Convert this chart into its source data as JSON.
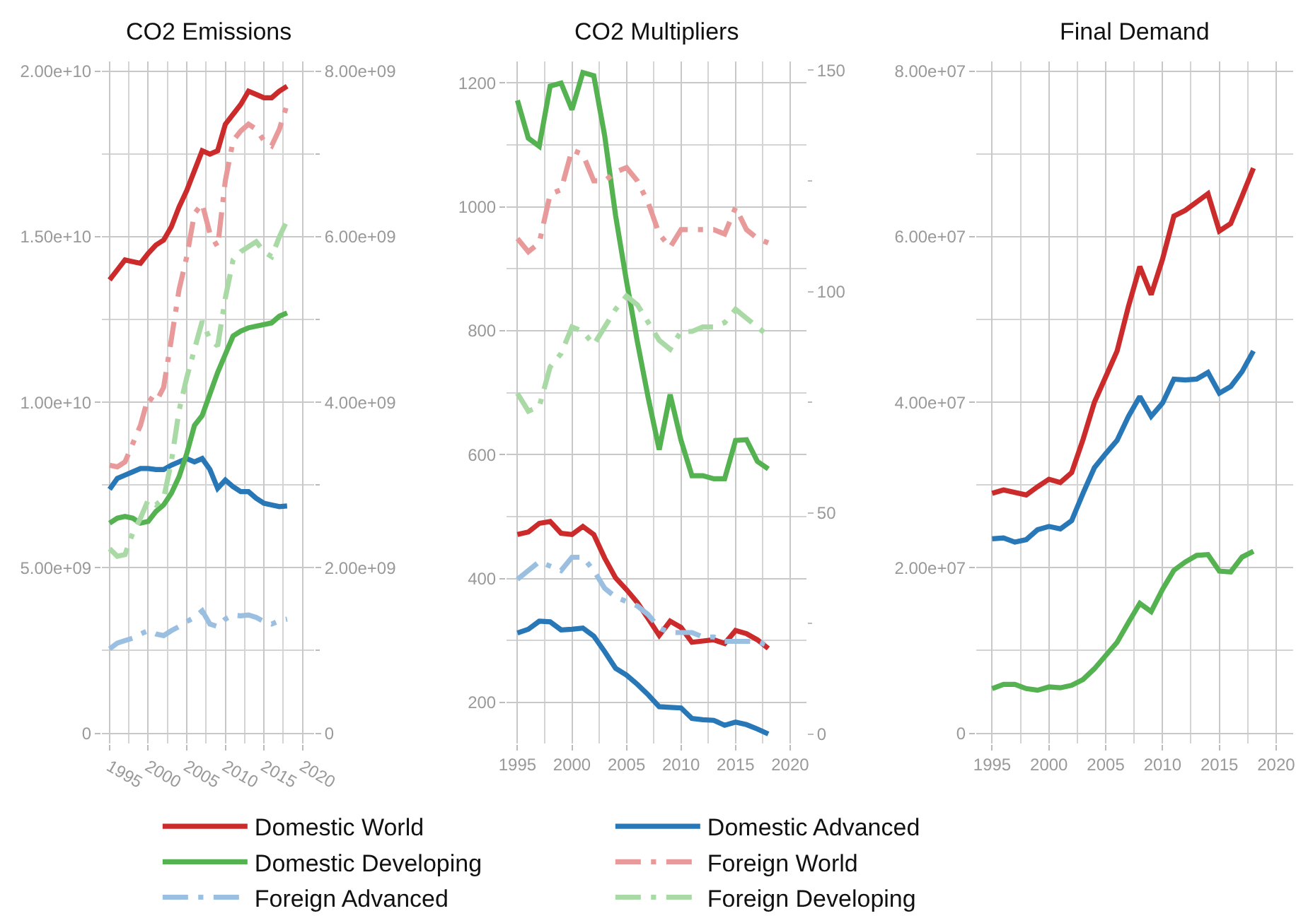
{
  "chart_data": [
    {
      "type": "line",
      "title": "CO2 Emissions",
      "x": [
        1995,
        1996,
        1997,
        1998,
        1999,
        2000,
        2001,
        2002,
        2003,
        2004,
        2005,
        2006,
        2007,
        2008,
        2009,
        2010,
        2011,
        2012,
        2013,
        2014,
        2015,
        2016,
        2017,
        2018
      ],
      "xlim": [
        1994,
        2021.5
      ],
      "xticks": [
        1995,
        2000,
        2005,
        2010,
        2015,
        2020
      ],
      "ylim": [
        -300000000.0,
        20300000000.0
      ],
      "yticks": [
        0,
        {
          "value": 5000000000.0,
          "label": "5.00e+09"
        },
        {
          "value": 10000000000.0,
          "label": "1.00e+10"
        },
        {
          "value": 15000000000.0,
          "label": "1.50e+10"
        },
        {
          "value": 20000000000.0,
          "label": "2.00e+10"
        }
      ],
      "y2lim": [
        -120000000.0,
        8120000000.0
      ],
      "y2ticks": [
        0,
        {
          "value": 2000000000.0,
          "label": "2.00e+09"
        },
        {
          "value": 4000000000.0,
          "label": "4.00e+09"
        },
        {
          "value": 6000000000.0,
          "label": "6.00e+09"
        },
        {
          "value": 8000000000.0,
          "label": "8.00e+09"
        }
      ],
      "grid": true,
      "legend": "bottom",
      "marker": "none",
      "series": [
        {
          "name": "Domestic World",
          "color": "#cc2b2b",
          "line_style": "solid",
          "values": [
            13700000000.0,
            14000000000.0,
            14300000000.0,
            14250000000.0,
            14200000000.0,
            14500000000.0,
            14750000000.0,
            14900000000.0,
            15300000000.0,
            15900000000.0,
            16400000000.0,
            17000000000.0,
            17600000000.0,
            17500000000.0,
            17600000000.0,
            18400000000.0,
            18700000000.0,
            19000000000.0,
            19400000000.0,
            19300000000.0,
            19200000000.0,
            19200000000.0,
            19400000000.0,
            19550000000.0
          ]
        },
        {
          "name": "Domestic Advanced",
          "color": "#2878b8",
          "line_style": "solid",
          "values": [
            7370000000.0,
            7700000000.0,
            7800000000.0,
            7900000000.0,
            8000000000.0,
            8000000000.0,
            7970000000.0,
            7970000000.0,
            8100000000.0,
            8200000000.0,
            8300000000.0,
            8200000000.0,
            8300000000.0,
            7970000000.0,
            7400000000.0,
            7650000000.0,
            7450000000.0,
            7300000000.0,
            7300000000.0,
            7100000000.0,
            6950000000.0,
            6900000000.0,
            6850000000.0,
            6870000000.0
          ]
        },
        {
          "name": "Domestic Developing",
          "color": "#55b250",
          "line_style": "solid",
          "values": [
            6350000000.0,
            6500000000.0,
            6550000000.0,
            6500000000.0,
            6350000000.0,
            6400000000.0,
            6700000000.0,
            6900000000.0,
            7250000000.0,
            7750000000.0,
            8450000000.0,
            9300000000.0,
            9600000000.0,
            10250000000.0,
            10900000000.0,
            11450000000.0,
            12000000000.0,
            12150000000.0,
            12250000000.0,
            12300000000.0,
            12350000000.0,
            12400000000.0,
            12600000000.0,
            12700000000.0
          ]
        },
        {
          "name": "Foreign World",
          "color": "#e89a9a",
          "line_style": "dashed",
          "axis": "y2",
          "values": [
            3240000000.0,
            3220000000.0,
            3280000000.0,
            3500000000.0,
            3720000000.0,
            4060000000.0,
            4000000000.0,
            4180000000.0,
            4760000000.0,
            5360000000.0,
            5760000000.0,
            6280000000.0,
            6400000000.0,
            6040000000.0,
            5880000000.0,
            6680000000.0,
            7160000000.0,
            7280000000.0,
            7360000000.0,
            7300000000.0,
            7160000000.0,
            7100000000.0,
            7300000000.0,
            7600000000.0
          ]
        },
        {
          "name": "Foreign Advanced",
          "color": "#9bbfe0",
          "line_style": "dashed",
          "axis": "y2",
          "values": [
            1020000000.0,
            1090000000.0,
            1120000000.0,
            1150000000.0,
            1200000000.0,
            1240000000.0,
            1200000000.0,
            1180000000.0,
            1240000000.0,
            1290000000.0,
            1350000000.0,
            1400000000.0,
            1480000000.0,
            1320000000.0,
            1290000000.0,
            1380000000.0,
            1430000000.0,
            1420000000.0,
            1430000000.0,
            1400000000.0,
            1350000000.0,
            1320000000.0,
            1360000000.0,
            1380000000.0
          ]
        },
        {
          "name": "Foreign Developing",
          "color": "#a9daa6",
          "line_style": "dashed",
          "axis": "y2",
          "values": [
            2230000000.0,
            2140000000.0,
            2160000000.0,
            2420000000.0,
            2600000000.0,
            2820000000.0,
            2760000000.0,
            2840000000.0,
            3280000000.0,
            3900000000.0,
            4300000000.0,
            4640000000.0,
            4980000000.0,
            4760000000.0,
            4680000000.0,
            5260000000.0,
            5720000000.0,
            5820000000.0,
            5880000000.0,
            5940000000.0,
            5820000000.0,
            5760000000.0,
            6000000000.0,
            6200000000.0
          ]
        }
      ]
    },
    {
      "type": "line",
      "title": "CO2 Multipliers",
      "x": [
        1995,
        1996,
        1997,
        1998,
        1999,
        2000,
        2001,
        2002,
        2003,
        2004,
        2005,
        2006,
        2007,
        2008,
        2009,
        2010,
        2011,
        2012,
        2013,
        2014,
        2015,
        2016,
        2017,
        2018
      ],
      "xlim": [
        1994,
        2021.5
      ],
      "xticks": [
        1995,
        2000,
        2005,
        2010,
        2015,
        2020
      ],
      "ylim": [
        134,
        1235
      ],
      "yticks": [
        200,
        400,
        600,
        800,
        1000,
        1200
      ],
      "y2lim": [
        -2,
        152
      ],
      "y2ticks": [
        0,
        50,
        100,
        150
      ],
      "grid": true,
      "legend": "bottom",
      "marker": "none",
      "series": [
        {
          "name": "Domestic World",
          "color": "#cc2b2b",
          "line_style": "solid",
          "values": [
            471,
            475,
            489,
            492,
            473,
            471,
            484,
            471,
            433,
            401,
            382,
            361,
            335,
            308,
            331,
            321,
            297,
            299,
            301,
            295,
            316,
            311,
            301,
            287
          ]
        },
        {
          "name": "Domestic Advanced",
          "color": "#2878b8",
          "line_style": "solid",
          "values": [
            312,
            318,
            331,
            330,
            317,
            318,
            320,
            307,
            282,
            255,
            244,
            229,
            212,
            193,
            192,
            191,
            174,
            172,
            171,
            163,
            168,
            164,
            157,
            149
          ]
        },
        {
          "name": "Domestic Developing",
          "color": "#55b250",
          "line_style": "solid",
          "values": [
            1172,
            1111,
            1098,
            1195,
            1200,
            1157,
            1217,
            1212,
            1115,
            986,
            880,
            782,
            691,
            608,
            697,
            623,
            566,
            566,
            561,
            561,
            623,
            624,
            589,
            577
          ]
        },
        {
          "name": "Foreign World",
          "color": "#e89a9a",
          "line_style": "dashed",
          "axis": "y2",
          "values": [
            112,
            109,
            111,
            122,
            123,
            132,
            131,
            125,
            125,
            127,
            128,
            125,
            120,
            113,
            110,
            114,
            114,
            114,
            114,
            113,
            119,
            114,
            112,
            111
          ]
        },
        {
          "name": "Foreign Advanced",
          "color": "#9bbfe0",
          "line_style": "dashed",
          "axis": "y2",
          "values": [
            35,
            37,
            39,
            38,
            37,
            40,
            40,
            37,
            33,
            31,
            30,
            29,
            27,
            24,
            23,
            23,
            23,
            22,
            22,
            21,
            21,
            21,
            21,
            20
          ]
        },
        {
          "name": "Foreign Developing",
          "color": "#a9daa6",
          "line_style": "dashed",
          "axis": "y2",
          "values": [
            77,
            73,
            74,
            83,
            86,
            92,
            91,
            88,
            92,
            96,
            99,
            97,
            93,
            89,
            87,
            91,
            91,
            92,
            92,
            93,
            96,
            94,
            92,
            90
          ]
        }
      ]
    },
    {
      "type": "line",
      "title": "Final Demand",
      "x": [
        1995,
        1996,
        1997,
        1998,
        1999,
        2000,
        2001,
        2002,
        2003,
        2004,
        2005,
        2006,
        2007,
        2008,
        2009,
        2010,
        2011,
        2012,
        2013,
        2014,
        2015,
        2016,
        2017,
        2018
      ],
      "xlim": [
        1993.6,
        2021.5
      ],
      "xticks": [
        1995,
        2000,
        2005,
        2010,
        2015,
        2020
      ],
      "ylim": [
        -1200000.0,
        81200000.0
      ],
      "yticks": [
        0,
        {
          "value": 20000000.0,
          "label": "2.00e+07"
        },
        {
          "value": 40000000.0,
          "label": "4.00e+07"
        },
        {
          "value": 60000000.0,
          "label": "6.00e+07"
        },
        {
          "value": 80000000.0,
          "label": "8.00e+07"
        }
      ],
      "grid": true,
      "legend": "bottom",
      "marker": "none",
      "series": [
        {
          "name": "Domestic World",
          "color": "#cc2b2b",
          "line_style": "solid",
          "values": [
            29000000.0,
            29400000.0,
            29100000.0,
            28800000.0,
            29800000.0,
            30700000.0,
            30300000.0,
            31500000.0,
            35500000.0,
            40000000.0,
            43100000.0,
            46200000.0,
            51600000.0,
            56400000.0,
            53000000.0,
            57300000.0,
            62500000.0,
            63200000.0,
            64200000.0,
            65200000.0,
            60700000.0,
            61600000.0,
            64900000.0,
            68300000.0
          ]
        },
        {
          "name": "Domestic Advanced",
          "color": "#2878b8",
          "line_style": "solid",
          "values": [
            23500000.0,
            23600000.0,
            23100000.0,
            23400000.0,
            24600000.0,
            25000000.0,
            24700000.0,
            25700000.0,
            29000000.0,
            32100000.0,
            33800000.0,
            35400000.0,
            38300000.0,
            40700000.0,
            38300000.0,
            39900000.0,
            42800000.0,
            42700000.0,
            42800000.0,
            43600000.0,
            41100000.0,
            41900000.0,
            43700000.0,
            46200000.0
          ]
        },
        {
          "name": "Domestic Developing",
          "color": "#55b250",
          "line_style": "solid",
          "values": [
            5400000.0,
            5900000.0,
            5900000.0,
            5400000.0,
            5200000.0,
            5600000.0,
            5500000.0,
            5800000.0,
            6500000.0,
            7800000.0,
            9400000.0,
            11000000.0,
            13400000.0,
            15700000.0,
            14700000.0,
            17400000.0,
            19700000.0,
            20700000.0,
            21500000.0,
            21600000.0,
            19600000.0,
            19500000.0,
            21300000.0,
            22000000.0
          ]
        }
      ]
    }
  ]
}
